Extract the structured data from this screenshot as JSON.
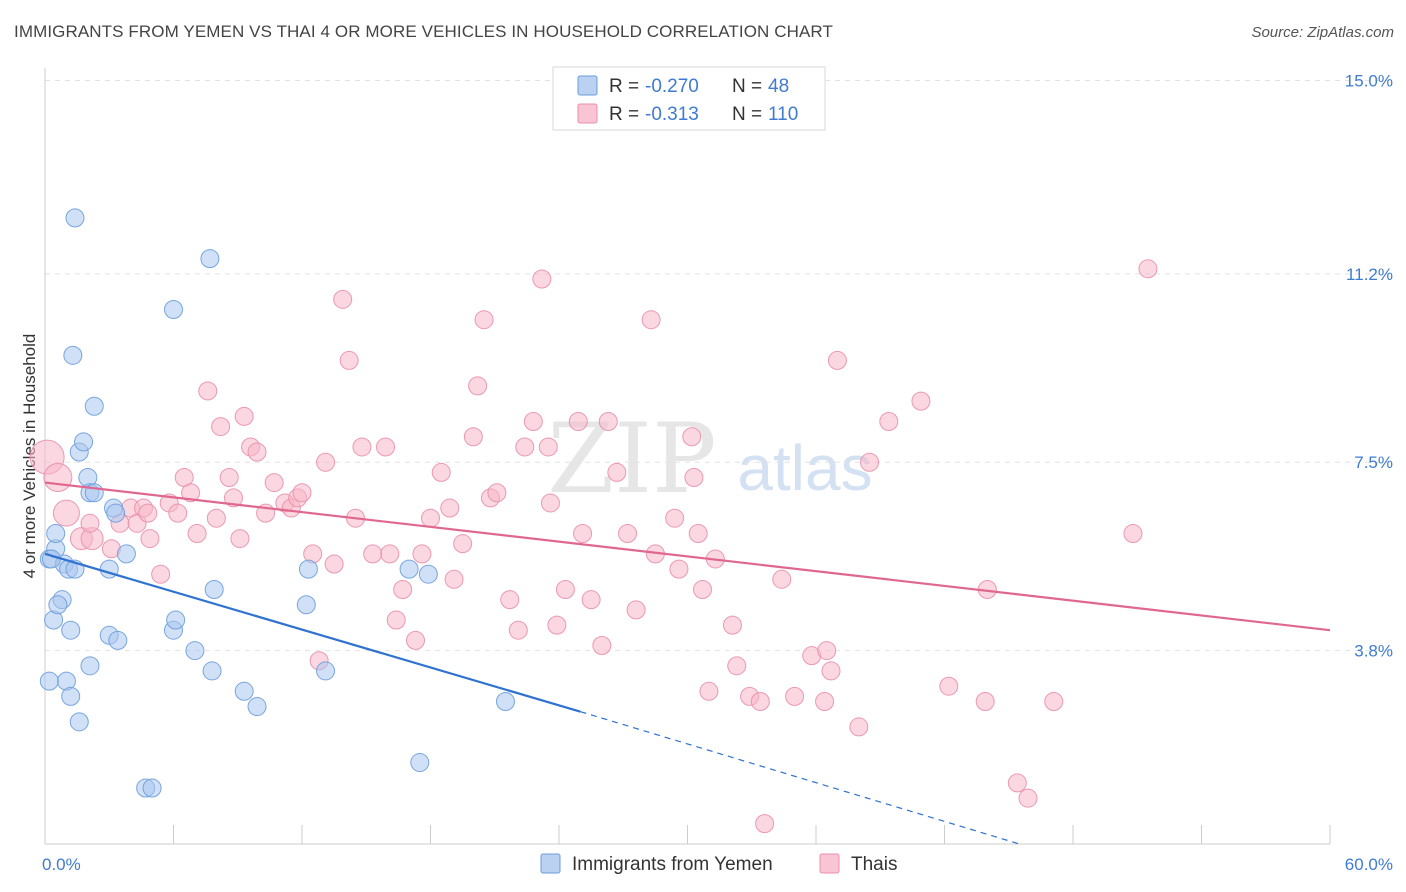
{
  "title": "IMMIGRANTS FROM YEMEN VS THAI 4 OR MORE VEHICLES IN HOUSEHOLD CORRELATION CHART",
  "source": "Source: ZipAtlas.com",
  "watermark": {
    "zip": "ZIP",
    "atlas": "atlas"
  },
  "legend_stats": [
    {
      "r_label": "R =",
      "r_value": "-0.270",
      "n_label": "N =",
      "n_value": "48",
      "color": "#a9c6ef"
    },
    {
      "r_label": "R =",
      "r_value": "-0.313",
      "n_label": "N =",
      "n_value": "110",
      "color": "#f7b7c9"
    }
  ],
  "chart_data": {
    "type": "scatter",
    "title": "IMMIGRANTS FROM YEMEN VS THAI 4 OR MORE VEHICLES IN HOUSEHOLD CORRELATION CHART",
    "xlabel": "",
    "ylabel": "4 or more Vehicles in Household",
    "xlim": [
      0,
      60
    ],
    "ylim": [
      0,
      15.5
    ],
    "x_tick_labels": [
      {
        "value": 0,
        "label": "0.0%"
      },
      {
        "value": 60,
        "label": "60.0%"
      }
    ],
    "y_ticks": [
      {
        "value": 3.8,
        "label": "3.8%"
      },
      {
        "value": 7.5,
        "label": "7.5%"
      },
      {
        "value": 11.2,
        "label": "11.2%"
      },
      {
        "value": 15.0,
        "label": "15.0%"
      }
    ],
    "grid": true,
    "legend_position": "bottom-center",
    "series": [
      {
        "name": "Immigrants from Yemen",
        "color": "#a9c6ef",
        "stroke": "#6b9ddb",
        "trend_color": "#2f72d0",
        "trend": {
          "x": [
            0,
            25.0
          ],
          "y": [
            5.7,
            2.6
          ],
          "dashed_to": [
            45.5,
            0
          ]
        },
        "points": [
          [
            0.2,
            5.6,
            9
          ],
          [
            0.5,
            5.8,
            9
          ],
          [
            0.5,
            6.1,
            9
          ],
          [
            0.8,
            4.8,
            9
          ],
          [
            0.4,
            4.4,
            9
          ],
          [
            0.6,
            4.7,
            9
          ],
          [
            0.9,
            5.5,
            9
          ],
          [
            1.1,
            5.4,
            9
          ],
          [
            1.2,
            4.2,
            9
          ],
          [
            1.0,
            3.2,
            9
          ],
          [
            0.2,
            3.2,
            9
          ],
          [
            1.2,
            2.9,
            9
          ],
          [
            1.6,
            7.7,
            9
          ],
          [
            1.8,
            7.9,
            9
          ],
          [
            1.3,
            9.6,
            9
          ],
          [
            2.3,
            8.6,
            9
          ],
          [
            2.0,
            7.2,
            9
          ],
          [
            2.1,
            6.9,
            9
          ],
          [
            2.3,
            6.9,
            9
          ],
          [
            3.2,
            6.6,
            9
          ],
          [
            3.3,
            6.5,
            9
          ],
          [
            3.0,
            5.4,
            9
          ],
          [
            3.8,
            5.7,
            9
          ],
          [
            2.1,
            3.5,
            9
          ],
          [
            3.0,
            4.1,
            9
          ],
          [
            3.4,
            4.0,
            9
          ],
          [
            1.6,
            2.4,
            9
          ],
          [
            1.4,
            12.3,
            9
          ],
          [
            7.7,
            11.5,
            9
          ],
          [
            6.0,
            10.5,
            9
          ],
          [
            6.0,
            4.2,
            9
          ],
          [
            6.1,
            4.4,
            9
          ],
          [
            7.9,
            5.0,
            9
          ],
          [
            7.0,
            3.8,
            9
          ],
          [
            7.8,
            3.4,
            9
          ],
          [
            9.3,
            3.0,
            9
          ],
          [
            9.9,
            2.7,
            9
          ],
          [
            12.3,
            5.4,
            9
          ],
          [
            12.2,
            4.7,
            9
          ],
          [
            13.1,
            3.4,
            9
          ],
          [
            17.0,
            5.4,
            9
          ],
          [
            17.9,
            5.3,
            9
          ],
          [
            21.5,
            2.8,
            9
          ],
          [
            17.5,
            1.6,
            9
          ],
          [
            4.7,
            1.1,
            9
          ],
          [
            5.0,
            1.1,
            9
          ],
          [
            0.3,
            5.6,
            9
          ],
          [
            1.4,
            5.4,
            9
          ]
        ]
      },
      {
        "name": "Thais",
        "color": "#f7b7c9",
        "stroke": "#e98fab",
        "trend_color": "#e0678f",
        "trend": {
          "x": [
            0,
            60
          ],
          "y": [
            7.1,
            4.2
          ]
        },
        "points": [
          [
            0.1,
            7.6,
            17
          ],
          [
            0.6,
            7.2,
            14
          ],
          [
            1.0,
            6.5,
            13
          ],
          [
            1.7,
            6.0,
            11
          ],
          [
            2.2,
            6.0,
            11
          ],
          [
            2.1,
            6.3,
            9
          ],
          [
            3.1,
            5.8,
            9
          ],
          [
            3.5,
            6.3,
            9
          ],
          [
            4.0,
            6.6,
            9
          ],
          [
            4.3,
            6.3,
            9
          ],
          [
            4.6,
            6.6,
            9
          ],
          [
            4.9,
            6.0,
            9
          ],
          [
            5.4,
            5.3,
            9
          ],
          [
            5.8,
            6.7,
            9
          ],
          [
            6.2,
            6.5,
            9
          ],
          [
            6.5,
            7.2,
            9
          ],
          [
            6.8,
            6.9,
            9
          ],
          [
            7.1,
            6.1,
            9
          ],
          [
            7.6,
            8.9,
            9
          ],
          [
            8.0,
            6.4,
            9
          ],
          [
            8.2,
            8.2,
            9
          ],
          [
            8.6,
            7.2,
            9
          ],
          [
            9.1,
            6.0,
            9
          ],
          [
            9.3,
            8.4,
            9
          ],
          [
            9.6,
            7.8,
            9
          ],
          [
            9.9,
            7.7,
            9
          ],
          [
            10.3,
            6.5,
            9
          ],
          [
            10.7,
            7.1,
            9
          ],
          [
            11.2,
            6.7,
            9
          ],
          [
            11.5,
            6.6,
            9
          ],
          [
            11.8,
            6.8,
            9
          ],
          [
            12.0,
            6.9,
            9
          ],
          [
            12.5,
            5.7,
            9
          ],
          [
            12.8,
            3.6,
            9
          ],
          [
            13.1,
            7.5,
            9
          ],
          [
            13.5,
            5.5,
            9
          ],
          [
            13.9,
            10.7,
            9
          ],
          [
            14.2,
            9.5,
            9
          ],
          [
            14.5,
            6.4,
            9
          ],
          [
            14.8,
            7.8,
            9
          ],
          [
            15.3,
            5.7,
            9
          ],
          [
            15.9,
            7.8,
            9
          ],
          [
            16.1,
            5.7,
            9
          ],
          [
            16.4,
            4.4,
            9
          ],
          [
            16.7,
            5.0,
            9
          ],
          [
            17.3,
            4.0,
            9
          ],
          [
            17.6,
            5.7,
            9
          ],
          [
            18.0,
            6.4,
            9
          ],
          [
            18.5,
            7.3,
            9
          ],
          [
            18.9,
            6.6,
            9
          ],
          [
            19.1,
            5.2,
            9
          ],
          [
            19.5,
            5.9,
            9
          ],
          [
            20.0,
            8.0,
            9
          ],
          [
            20.2,
            9.0,
            9
          ],
          [
            20.5,
            10.3,
            9
          ],
          [
            20.8,
            6.8,
            9
          ],
          [
            21.1,
            6.9,
            9
          ],
          [
            21.7,
            4.8,
            9
          ],
          [
            22.1,
            4.2,
            9
          ],
          [
            22.4,
            7.8,
            9
          ],
          [
            22.8,
            8.3,
            9
          ],
          [
            23.2,
            11.1,
            9
          ],
          [
            23.5,
            7.8,
            9
          ],
          [
            23.6,
            6.7,
            9
          ],
          [
            23.9,
            4.3,
            9
          ],
          [
            24.3,
            5.0,
            9
          ],
          [
            24.9,
            8.3,
            9
          ],
          [
            25.1,
            6.1,
            9
          ],
          [
            25.5,
            4.8,
            9
          ],
          [
            26.3,
            8.3,
            9
          ],
          [
            26.7,
            7.3,
            9
          ],
          [
            27.2,
            6.1,
            9
          ],
          [
            27.6,
            4.6,
            9
          ],
          [
            28.3,
            10.3,
            9
          ],
          [
            28.5,
            5.7,
            9
          ],
          [
            29.4,
            6.4,
            9
          ],
          [
            29.6,
            5.4,
            9
          ],
          [
            30.2,
            8.0,
            9
          ],
          [
            30.5,
            6.1,
            9
          ],
          [
            30.7,
            5.0,
            9
          ],
          [
            31.0,
            3.0,
            9
          ],
          [
            31.3,
            5.6,
            9
          ],
          [
            32.1,
            4.3,
            9
          ],
          [
            32.3,
            3.5,
            9
          ],
          [
            32.9,
            2.9,
            9
          ],
          [
            33.4,
            2.8,
            9
          ],
          [
            34.4,
            5.2,
            9
          ],
          [
            35.0,
            2.9,
            9
          ],
          [
            35.8,
            3.7,
            9
          ],
          [
            36.4,
            2.8,
            9
          ],
          [
            36.7,
            3.4,
            9
          ],
          [
            36.5,
            3.8,
            9
          ],
          [
            37.0,
            9.5,
            9
          ],
          [
            38.0,
            2.3,
            9
          ],
          [
            38.5,
            7.5,
            9
          ],
          [
            39.4,
            8.3,
            9
          ],
          [
            40.9,
            8.7,
            9
          ],
          [
            42.2,
            3.1,
            9
          ],
          [
            43.9,
            2.8,
            9
          ],
          [
            44.0,
            5.0,
            9
          ],
          [
            45.4,
            1.2,
            9
          ],
          [
            45.9,
            0.9,
            9
          ],
          [
            47.1,
            2.8,
            9
          ],
          [
            50.8,
            6.1,
            9
          ],
          [
            51.5,
            11.3,
            9
          ],
          [
            30.3,
            7.2,
            9
          ],
          [
            26.0,
            3.9,
            9
          ],
          [
            33.6,
            0.4,
            9
          ],
          [
            8.8,
            6.8,
            9
          ],
          [
            4.8,
            6.5,
            9
          ]
        ]
      }
    ]
  }
}
